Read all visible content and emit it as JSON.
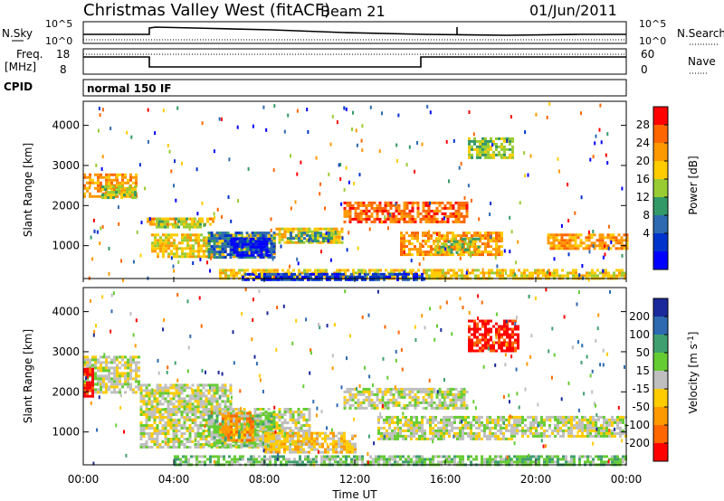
{
  "header": {
    "station": "Christmas Valley West (fitACF)",
    "beam": "Beam 21",
    "date": "01/Jun/2011"
  },
  "left_labels": {
    "nsky": "N.Sky",
    "freq": "Freq.",
    "freq_unit": "[MHz]",
    "cpid": "CPID"
  },
  "right_labels": {
    "nsearch": "N.Search",
    "nave": "Nave"
  },
  "noise_panel": {
    "left_ticks": [
      "10^5",
      "10^0"
    ],
    "right_ticks": [
      "10^5",
      "10^0"
    ]
  },
  "freq_panel": {
    "left_ticks": [
      "18",
      "8"
    ],
    "right_ticks": [
      "60",
      "0"
    ]
  },
  "cpid_text": "normal 150 IF",
  "power_legend": {
    "title": "Power [dB]",
    "ticks": [
      "28",
      "24",
      "20",
      "16",
      "12",
      "8",
      "4"
    ],
    "colors": [
      "#ff0000",
      "#ff6600",
      "#ff9900",
      "#ffcc00",
      "#99cc33",
      "#339966",
      "#2d6ab0",
      "#0033cc",
      "#0000ff"
    ]
  },
  "velocity_legend": {
    "title": "Velocity [m s",
    "title_sup": "-1",
    "ticks": [
      "200",
      "100",
      "50",
      "15",
      "-15",
      "-50",
      "-100",
      "-200"
    ],
    "colors": [
      "#1a2a9a",
      "#2d6ab0",
      "#3f9f6f",
      "#66cc33",
      "#bfbfbf",
      "#ffcc00",
      "#ff9900",
      "#ff6600",
      "#ff0000"
    ]
  },
  "chart_data": [
    {
      "type": "heatmap",
      "name": "power",
      "ylabel": "Slant Range [km]",
      "yticks": [
        "4000",
        "3000",
        "2000",
        "1000"
      ],
      "ylim": [
        180,
        4600
      ],
      "xlim": [
        0,
        24
      ],
      "xticks": [
        "00:00",
        "04:00",
        "08:00",
        "12:00",
        "16:00",
        "20:00",
        "00:00"
      ],
      "regions": [
        {
          "t0": 0.0,
          "t1": 2.3,
          "r0": 2200,
          "r1": 2800,
          "level": 2
        },
        {
          "t0": 0.8,
          "t1": 2.3,
          "r0": 2200,
          "r1": 2500,
          "level": 4
        },
        {
          "t0": 2.8,
          "t1": 5.7,
          "r0": 1500,
          "r1": 1700,
          "level": 2
        },
        {
          "t0": 3.2,
          "t1": 5.2,
          "r0": 1450,
          "r1": 1700,
          "level": 4
        },
        {
          "t0": 3.0,
          "t1": 8.5,
          "r0": 700,
          "r1": 1300,
          "level": 3
        },
        {
          "t0": 5.5,
          "t1": 8.5,
          "r0": 700,
          "r1": 1350,
          "level": 6
        },
        {
          "t0": 6.5,
          "t1": 8.2,
          "r0": 750,
          "r1": 1200,
          "level": 8
        },
        {
          "t0": 8.5,
          "t1": 11.5,
          "r0": 1050,
          "r1": 1450,
          "level": 3
        },
        {
          "t0": 9.0,
          "t1": 11.0,
          "r0": 1100,
          "r1": 1350,
          "level": 5
        },
        {
          "t0": 11.5,
          "t1": 17.0,
          "r0": 1600,
          "r1": 2100,
          "level": 1
        },
        {
          "t0": 14.0,
          "t1": 18.5,
          "r0": 800,
          "r1": 1350,
          "level": 2
        },
        {
          "t0": 15.5,
          "t1": 17.5,
          "r0": 850,
          "r1": 1200,
          "level": 4
        },
        {
          "t0": 17.0,
          "t1": 19.0,
          "r0": 3200,
          "r1": 3700,
          "level": 4
        },
        {
          "t0": 20.5,
          "t1": 24.0,
          "r0": 900,
          "r1": 1300,
          "level": 2
        },
        {
          "t0": 6.0,
          "t1": 24.0,
          "r0": 180,
          "r1": 420,
          "level": 3
        },
        {
          "t0": 7.0,
          "t1": 15.0,
          "r0": 180,
          "r1": 320,
          "level": 7
        }
      ]
    },
    {
      "type": "heatmap",
      "name": "velocity",
      "ylabel": "Slant Range [km]",
      "xlabel": "Time UT",
      "yticks": [
        "4000",
        "3000",
        "2000",
        "1000"
      ],
      "ylim": [
        180,
        4600
      ],
      "xlim": [
        0,
        24
      ],
      "xticks": [
        "00:00",
        "04:00",
        "08:00",
        "12:00",
        "16:00",
        "20:00",
        "00:00"
      ],
      "regions": [
        {
          "t0": 0.0,
          "t1": 2.5,
          "r0": 2000,
          "r1": 2900,
          "level": 4
        },
        {
          "t0": 0.0,
          "t1": 0.4,
          "r0": 1900,
          "r1": 2600,
          "level": 8
        },
        {
          "t0": 2.5,
          "t1": 6.5,
          "r0": 1500,
          "r1": 2200,
          "level": 4
        },
        {
          "t0": 2.5,
          "t1": 10.0,
          "r0": 600,
          "r1": 1600,
          "level": 4
        },
        {
          "t0": 5.5,
          "t1": 8.5,
          "r0": 650,
          "r1": 1500,
          "level": 3
        },
        {
          "t0": 6.0,
          "t1": 7.5,
          "r0": 800,
          "r1": 1500,
          "level": 6
        },
        {
          "t0": 8.0,
          "t1": 12.0,
          "r0": 500,
          "r1": 1000,
          "level": 5
        },
        {
          "t0": 11.5,
          "t1": 17.0,
          "r0": 1600,
          "r1": 2100,
          "level": 4
        },
        {
          "t0": 13.0,
          "t1": 19.0,
          "r0": 800,
          "r1": 1400,
          "level": 4
        },
        {
          "t0": 17.0,
          "t1": 19.2,
          "r0": 3000,
          "r1": 3800,
          "level": 8
        },
        {
          "t0": 19.0,
          "t1": 24.0,
          "r0": 900,
          "r1": 1400,
          "level": 4
        },
        {
          "t0": 4.0,
          "t1": 24.0,
          "r0": 180,
          "r1": 420,
          "level": 3
        }
      ]
    }
  ]
}
